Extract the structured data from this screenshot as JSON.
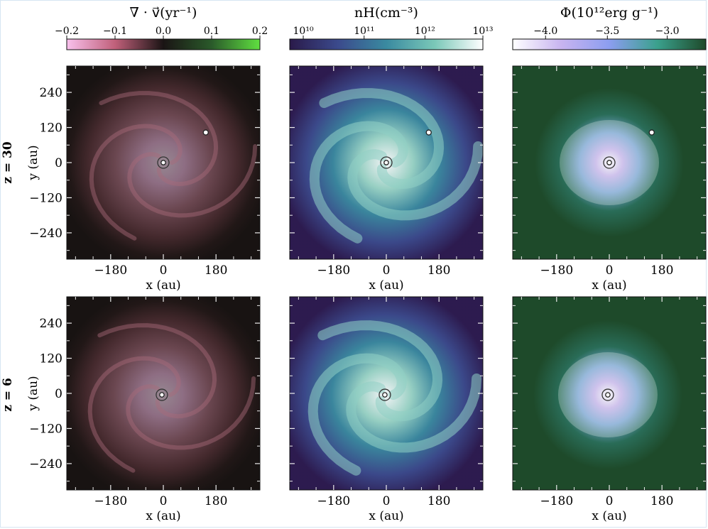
{
  "chart_data": [
    {
      "type": "heatmap",
      "quantity": "divergence",
      "title": "∇ · v⃗(yr⁻¹)",
      "colorbar": {
        "min": -0.2,
        "max": 0.2,
        "ticks": [
          "−0.2",
          "−0.1",
          "0.0",
          "0.1",
          "0.2"
        ],
        "colors": [
          "#f8c0ec",
          "#c0607a",
          "#1a1414",
          "#2a5a2a",
          "#60e040"
        ]
      },
      "rows": [
        {
          "row_label": "z = 30",
          "xlabel": "x (au)",
          "ylabel": "y (au)",
          "xticks": [
            "−180",
            "0",
            "180"
          ],
          "yticks": [
            "240",
            "120",
            "0",
            "−120",
            "−240"
          ],
          "xlim": [
            -330,
            330
          ],
          "ylim": [
            -330,
            330
          ],
          "center_marker": [
            0,
            0
          ],
          "companion_marker": [
            145,
            103
          ]
        },
        {
          "row_label": "z = 6",
          "xlabel": "x (au)",
          "ylabel": "y (au)",
          "xticks": [
            "−180",
            "0",
            "180"
          ],
          "yticks": [
            "240",
            "120",
            "0",
            "−120",
            "−240"
          ],
          "xlim": [
            -330,
            330
          ],
          "ylim": [
            -330,
            330
          ],
          "center_marker": [
            -5,
            -5
          ]
        }
      ]
    },
    {
      "type": "heatmap",
      "quantity": "density",
      "title": "nH(cm⁻³)",
      "colorbar": {
        "scale": "log",
        "min": 10000000000.0,
        "max": 10000000000000.0,
        "ticks": [
          "10¹⁰",
          "10¹¹",
          "10¹²",
          "10¹³"
        ],
        "colors": [
          "#2a1a4a",
          "#3b4a8c",
          "#3a8aa0",
          "#7ac8b8",
          "#ffffff"
        ]
      },
      "rows": [
        {
          "row_label": "z = 30",
          "xlabel": "x (au)",
          "ylabel": "y (au)",
          "xticks": [
            "−180",
            "0",
            "180"
          ],
          "yticks": [
            "240",
            "120",
            "0",
            "−120",
            "−240"
          ],
          "xlim": [
            -330,
            330
          ],
          "ylim": [
            -330,
            330
          ],
          "center_marker": [
            0,
            0
          ],
          "companion_marker": [
            145,
            103
          ]
        },
        {
          "row_label": "z = 6",
          "xlabel": "x (au)",
          "ylabel": "y (au)",
          "xticks": [
            "−180",
            "0",
            "180"
          ],
          "yticks": [
            "240",
            "120",
            "0",
            "−120",
            "−240"
          ],
          "xlim": [
            -330,
            330
          ],
          "ylim": [
            -330,
            330
          ],
          "center_marker": [
            -5,
            -5
          ]
        }
      ]
    },
    {
      "type": "heatmap",
      "quantity": "potential",
      "title": "Φ(10¹²erg g⁻¹)",
      "colorbar": {
        "min": -4.4,
        "max": -2.7,
        "ticks": [
          "−4.0",
          "−3.5",
          "−3.0"
        ],
        "colors": [
          "#ffffff",
          "#c8b4f0",
          "#8c9ef0",
          "#3aa08c",
          "#1e4a2a"
        ]
      },
      "rows": [
        {
          "row_label": "z = 30",
          "xlabel": "x (au)",
          "ylabel": "y (au)",
          "xticks": [
            "−180",
            "0",
            "180"
          ],
          "yticks": [
            "240",
            "120",
            "0",
            "−120",
            "−240"
          ],
          "xlim": [
            -330,
            330
          ],
          "ylim": [
            -330,
            330
          ],
          "center_marker": [
            0,
            0
          ],
          "companion_marker": [
            145,
            103
          ]
        },
        {
          "row_label": "z = 6",
          "xlabel": "x (au)",
          "ylabel": "y (au)",
          "xticks": [
            "−180",
            "0",
            "180"
          ],
          "yticks": [
            "240",
            "120",
            "0",
            "−120",
            "−240"
          ],
          "xlim": [
            -330,
            330
          ],
          "ylim": [
            -330,
            330
          ],
          "center_marker": [
            -5,
            -5
          ]
        }
      ]
    }
  ],
  "row_labels": [
    "z = 30",
    "z = 6"
  ]
}
